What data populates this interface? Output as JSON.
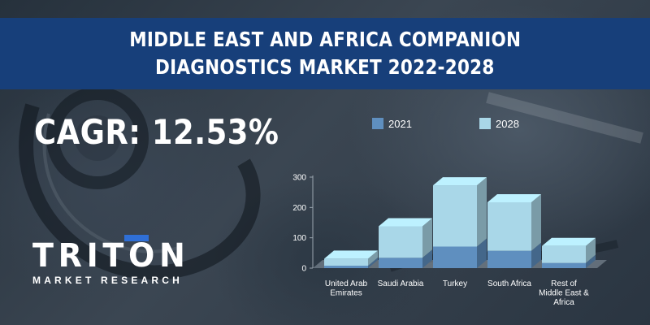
{
  "banner": {
    "title_line1": "MIDDLE EAST AND AFRICA COMPANION",
    "title_line2": "DIAGNOSTICS MARKET 2022-2028"
  },
  "cagr_text": "CAGR: 12.53%",
  "logo": {
    "word": "TRITON",
    "subtitle": "MARKET RESEARCH"
  },
  "colors": {
    "banner": "#173f7a",
    "series_2021": "#5f8fbf",
    "series_2028": "#a9d7e8"
  },
  "chart_data": {
    "type": "bar",
    "stacked": true,
    "style": "3d",
    "categories": [
      [
        "United Arab",
        "Emirates"
      ],
      [
        "Saudi Arabia"
      ],
      [
        "Turkey"
      ],
      [
        "South Africa"
      ],
      [
        "Rest of",
        "Middle East &",
        "Africa"
      ]
    ],
    "series": [
      {
        "name": "2021",
        "values": [
          8,
          34,
          71,
          57,
          17
        ]
      },
      {
        "name": "2028",
        "values": [
          23,
          104,
          202,
          160,
          56
        ]
      }
    ],
    "y_ticks": [
      "0",
      "100",
      "200",
      "300"
    ],
    "ylim": [
      0,
      300
    ],
    "legend": "top",
    "grid": false
  }
}
